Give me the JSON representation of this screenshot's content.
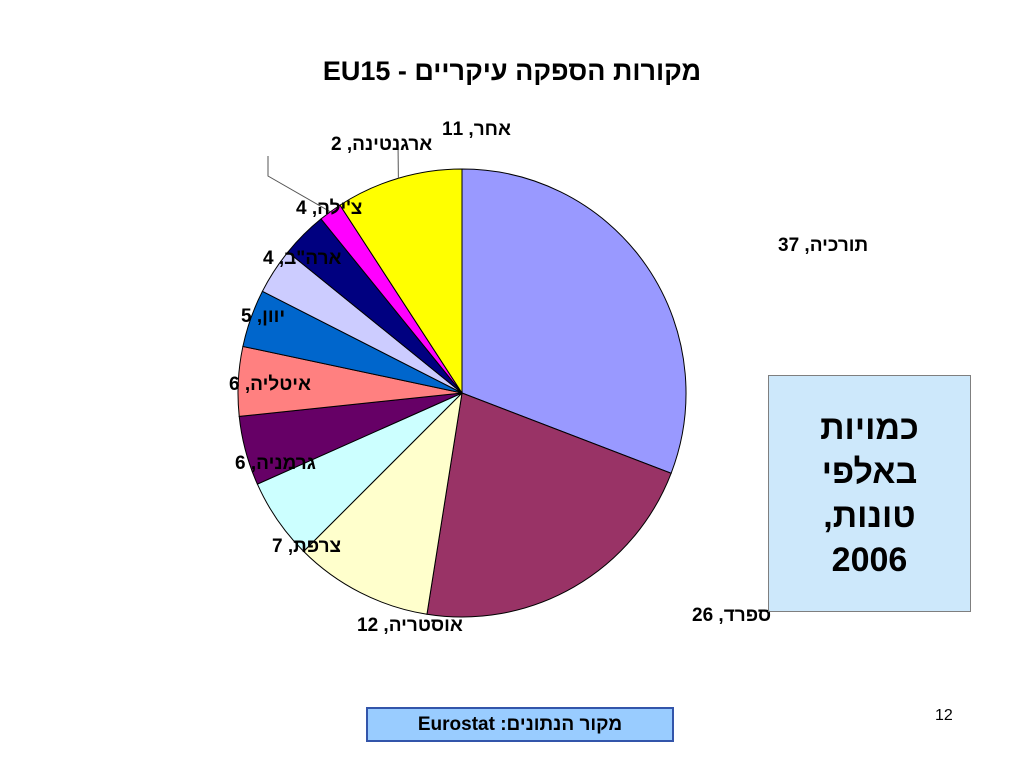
{
  "slide": {
    "source_label": "מקור הנתונים: Eurostat",
    "page_number": "12"
  },
  "note": {
    "text": "כמויות\nבאלפי\nטונות,\n2006"
  },
  "chart_data": {
    "type": "pie",
    "title": "מקורות הספקה עיקריים - EU15",
    "slices": [
      {
        "label": "תורכיה",
        "value": 37,
        "color": "#9999ff"
      },
      {
        "label": "ספרד",
        "value": 26,
        "color": "#993366"
      },
      {
        "label": "אוסטריה",
        "value": 12,
        "color": "#ffffcc"
      },
      {
        "label": "צרפת",
        "value": 7,
        "color": "#ccffff"
      },
      {
        "label": "גרמניה",
        "value": 6,
        "color": "#660066"
      },
      {
        "label": "איטליה",
        "value": 6,
        "color": "#ff8080"
      },
      {
        "label": "יוון",
        "value": 5,
        "color": "#0066cc"
      },
      {
        "label": "ארה\"ב",
        "value": 4,
        "color": "#ccccff"
      },
      {
        "label": "צ'ילה",
        "value": 4,
        "color": "#000080"
      },
      {
        "label": "ארגנטינה",
        "value": 2,
        "color": "#ff00ff"
      },
      {
        "label": "אחר",
        "value": 11,
        "color": "#ffff00"
      }
    ],
    "start_angle": "12 o'clock",
    "direction": "clockwise",
    "data_labels": "category, value"
  }
}
